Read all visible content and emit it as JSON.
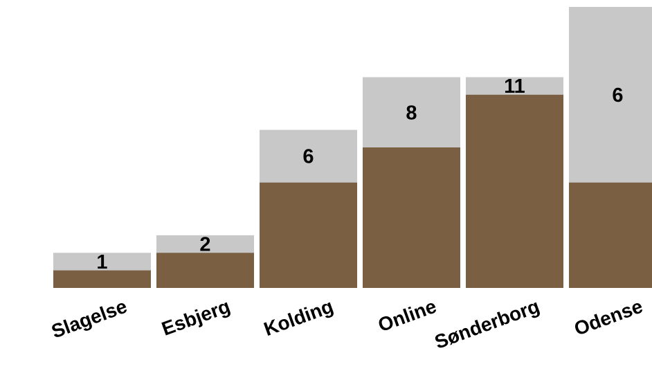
{
  "chart_data": {
    "type": "bar",
    "stacked": false,
    "categories": [
      "Slagelse",
      "Esbjerg",
      "Kolding",
      "Online",
      "Sønderborg",
      "Odense"
    ],
    "series": [
      {
        "values": [
          1,
          2,
          6,
          8,
          11,
          6
        ],
        "color": "#7a5f42"
      },
      {
        "values": [
          2,
          3,
          9,
          12,
          12,
          16
        ],
        "color": "#c8c8c8"
      }
    ],
    "data_labels": [
      "1",
      "2",
      "6",
      "8",
      "11",
      "6"
    ],
    "ylim": [
      0,
      16
    ],
    "grid": false,
    "legend": "none",
    "title": "",
    "xlabel": "",
    "ylabel": ""
  }
}
